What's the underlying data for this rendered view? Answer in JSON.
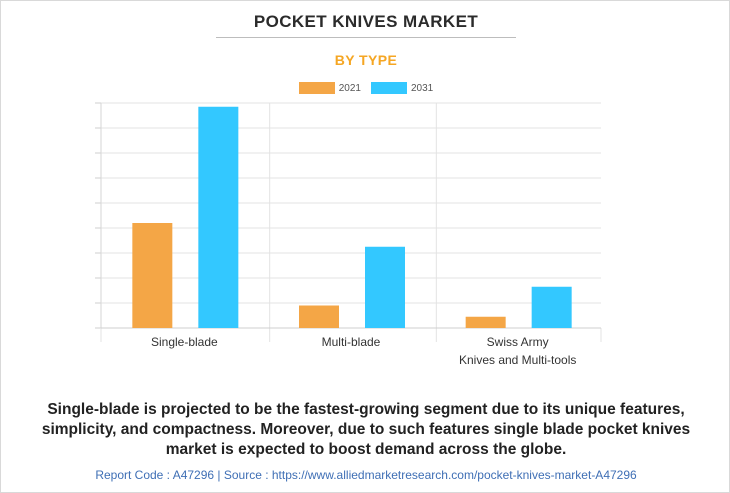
{
  "header": {
    "title": "POCKET KNIVES MARKET",
    "subtitle": "BY TYPE"
  },
  "legend": [
    {
      "label": "2021",
      "color": "#f4a646"
    },
    {
      "label": "2031",
      "color": "#33c8ff"
    }
  ],
  "chart_data": {
    "type": "bar",
    "categories": [
      [
        "Single-blade"
      ],
      [
        "Multi-blade"
      ],
      [
        "Swiss Army",
        "Knives and Multi-tools"
      ]
    ],
    "series": [
      {
        "name": "2021",
        "color": "#f4a646",
        "values": [
          4.2,
          0.9,
          0.45
        ]
      },
      {
        "name": "2031",
        "color": "#33c8ff",
        "values": [
          8.85,
          3.25,
          1.65
        ]
      }
    ],
    "ylim": [
      0,
      9
    ],
    "y_gridlines": 9,
    "grid": true,
    "legend_position": "top-center"
  },
  "summary": "Single-blade is projected to be the fastest-growing segment due to its unique features, simplicity, and compactness. Moreover, due to such features single blade pocket knives market is expected to boost demand across the globe.",
  "footer": "Report Code : A47296  |  Source : https://www.alliedmarketresearch.com/pocket-knives-market-A47296"
}
